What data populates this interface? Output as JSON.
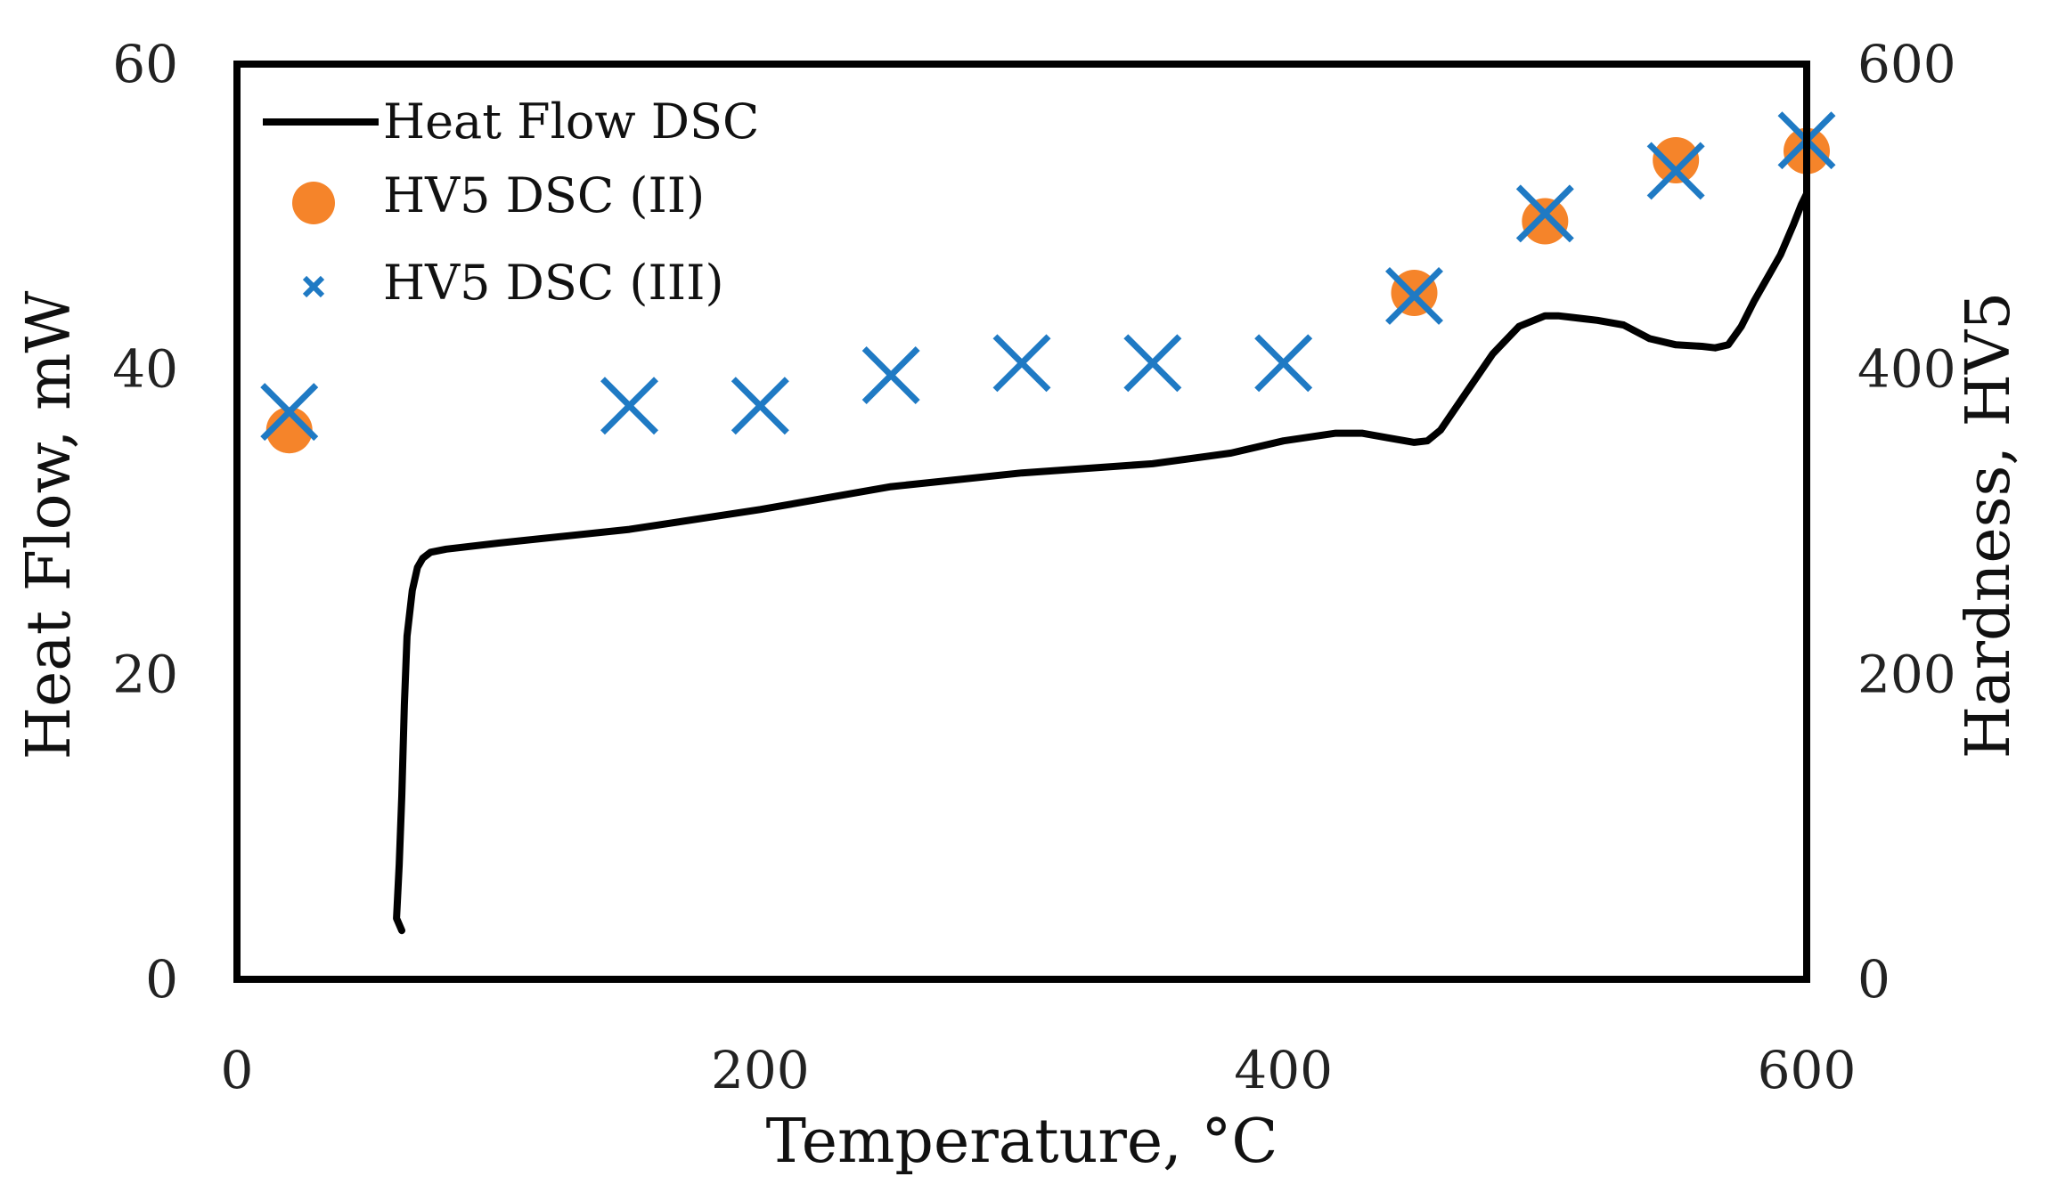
{
  "chart_data": {
    "type": "line+scatter",
    "title": "",
    "xlabel": "Temperature, °C",
    "ylabel_left": "Heat Flow, mW",
    "ylabel_right": "Hardness, HV5",
    "xlim": [
      0,
      600
    ],
    "ylim_left": [
      0,
      60
    ],
    "ylim_right": [
      0,
      600
    ],
    "x_ticks": [
      "0",
      "200",
      "400",
      "600"
    ],
    "y_left_ticks": [
      "0",
      "20",
      "40",
      "60"
    ],
    "y_right_ticks": [
      "0",
      "200",
      "400",
      "600"
    ],
    "grid": false,
    "legend_position": "top-left",
    "colors": {
      "heat_flow": "#000000",
      "dsc_ii": "#F5842A",
      "dsc_iii": "#1F7AC4",
      "frame": "#000000"
    },
    "series": [
      {
        "name": "Heat Flow DSC",
        "kind": "line",
        "axis": "left",
        "x": [
          63,
          61,
          62,
          63,
          64,
          65,
          67,
          69,
          71,
          74,
          80,
          100,
          150,
          200,
          250,
          300,
          350,
          380,
          400,
          420,
          430,
          440,
          450,
          455,
          460,
          470,
          480,
          490,
          500,
          505,
          510,
          520,
          530,
          540,
          550,
          560,
          565,
          570,
          575,
          580,
          585,
          590,
          595,
          598,
          600
        ],
        "y": [
          3.2,
          4.0,
          7.5,
          12.0,
          18.0,
          22.5,
          25.5,
          27.0,
          27.6,
          28.0,
          28.2,
          28.6,
          29.5,
          30.8,
          32.3,
          33.2,
          33.8,
          34.5,
          35.3,
          35.8,
          35.8,
          35.5,
          35.2,
          35.3,
          36.0,
          38.5,
          41.0,
          42.8,
          43.5,
          43.5,
          43.4,
          43.2,
          42.9,
          42.0,
          41.6,
          41.5,
          41.4,
          41.6,
          42.8,
          44.5,
          46.0,
          47.5,
          49.5,
          50.8,
          51.5
        ]
      },
      {
        "name": "HV5 DSC (II)",
        "kind": "scatter",
        "marker": "circle",
        "axis": "right",
        "x": [
          20,
          450,
          500,
          550,
          600
        ],
        "y": [
          360,
          450,
          497,
          537,
          543
        ]
      },
      {
        "name": "HV5 DSC (III)",
        "kind": "scatter",
        "marker": "x",
        "axis": "right",
        "x": [
          20,
          150,
          200,
          250,
          300,
          350,
          400,
          450,
          500,
          550,
          600
        ],
        "y": [
          372,
          376,
          376,
          396,
          404,
          404,
          404,
          448,
          502,
          530,
          550
        ]
      }
    ]
  }
}
